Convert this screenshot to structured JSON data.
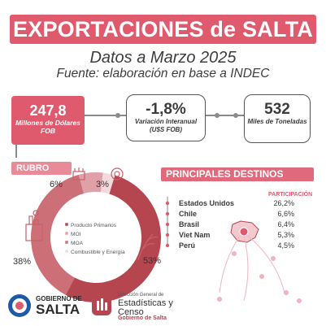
{
  "header": {
    "title": "EXPORTACIONES de SALTA",
    "subtitle": "Datos a Marzo 2025",
    "source": "Fuente: elaboración en base a INDEC"
  },
  "kpis": [
    {
      "value": "247,8",
      "label": "Millones de Dólares FOB"
    },
    {
      "value": "-1,8%",
      "label": "Variación Interanual (U$S FOB)"
    },
    {
      "value": "532",
      "label": "Miles de Toneladas"
    }
  ],
  "rubro": {
    "heading": "RUBRO",
    "legend": [
      "Producto Primarios",
      "MOI",
      "MOA",
      "Combustible y Energía"
    ]
  },
  "destinos": {
    "heading": "PRINCIPALES DESTINOS",
    "column_head": "PARTICIPACIÓN",
    "rows": [
      {
        "name": "Estados Unidos",
        "value": "26,2%"
      },
      {
        "name": "Chile",
        "value": "6,6%"
      },
      {
        "name": "Brasil",
        "value": "6,4%"
      },
      {
        "name": "Viet Nam",
        "value": "5,3%"
      },
      {
        "name": "Perú",
        "value": "4,5%"
      }
    ]
  },
  "chart_data": {
    "type": "pie",
    "title": "RUBRO",
    "categories": [
      "Producto Primarios",
      "MOI",
      "MOA",
      "Combustible y Energía"
    ],
    "values": [
      53,
      6,
      38,
      3
    ],
    "value_labels": [
      "53%",
      "6%",
      "38%",
      "3%"
    ],
    "colors": [
      "#b5454f",
      "#e0a0a8",
      "#cc6f77",
      "#f3d9dc"
    ]
  },
  "logos": {
    "gov_top": "GOBIERNO DE",
    "gov_main": "SALTA",
    "dge_1": "Dirección General de",
    "dge_2": "Estadísticas y",
    "dge_3": "Censo",
    "dge_4": "Gobierno de Salta"
  }
}
